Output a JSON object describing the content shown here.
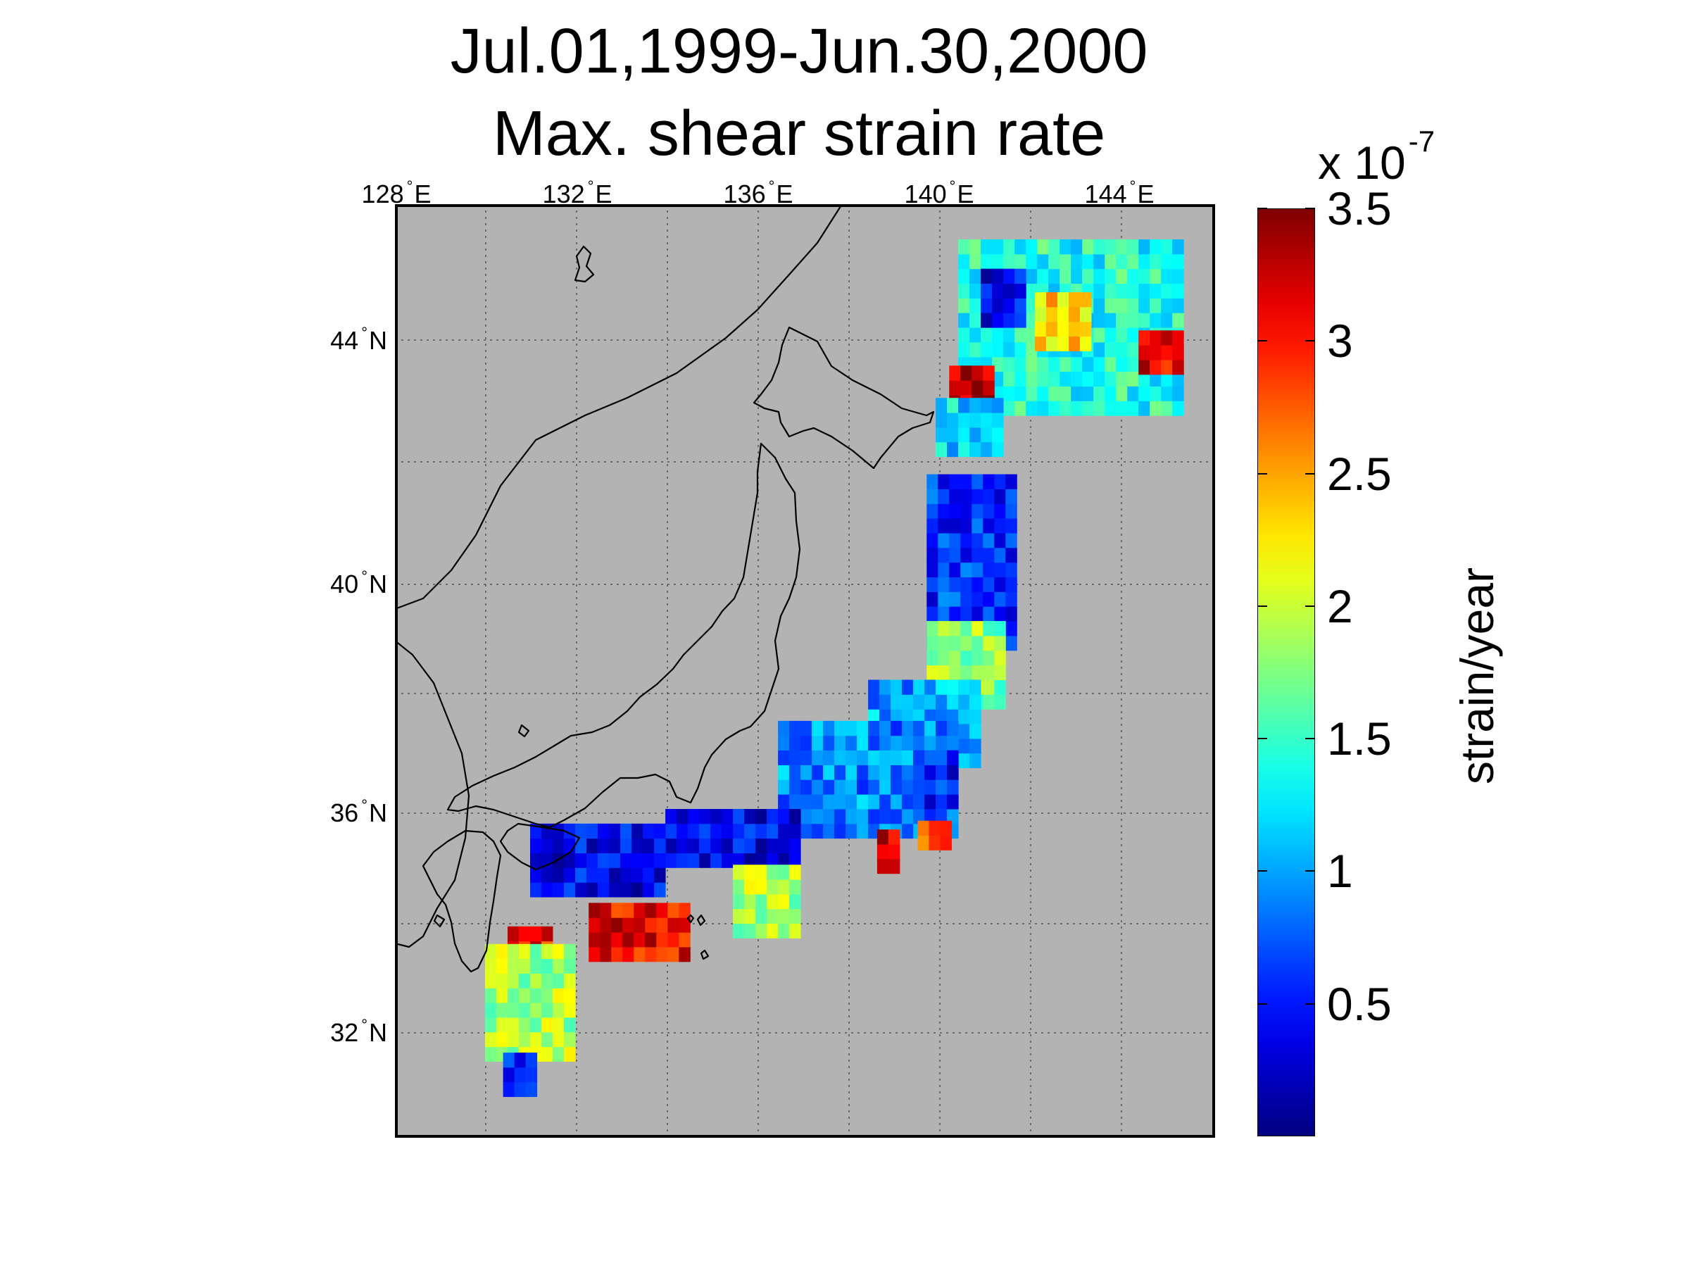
{
  "title": {
    "line1": "Jul.01,1999-Jun.30,2000",
    "line2": "Max. shear strain rate"
  },
  "map": {
    "background_color": "#b3b3b3",
    "coastline_color": "#000000",
    "gridline_style": "dotted",
    "lon_labels": [
      {
        "deg": "128",
        "hemi": "E"
      },
      {
        "deg": "132",
        "hemi": "E"
      },
      {
        "deg": "136",
        "hemi": "E"
      },
      {
        "deg": "140",
        "hemi": "E"
      },
      {
        "deg": "144",
        "hemi": "E"
      }
    ],
    "lat_labels": [
      {
        "deg": "44",
        "hemi": "N"
      },
      {
        "deg": "40",
        "hemi": "N"
      },
      {
        "deg": "36",
        "hemi": "N"
      },
      {
        "deg": "32",
        "hemi": "N"
      }
    ],
    "extent": {
      "lon_min": 128,
      "lon_max": 146.2,
      "lat_min": 30.2,
      "lat_max": 46.1
    }
  },
  "colorbar": {
    "multiplier": "x 10",
    "exponent": "-7",
    "label": "strain/year",
    "colormap": "jet",
    "range": [
      0,
      3.5
    ],
    "ticks": [
      "3.5",
      "3",
      "2.5",
      "2",
      "1.5",
      "1",
      "0.5"
    ],
    "tick_values": [
      3.5,
      3,
      2.5,
      2,
      1.5,
      1,
      0.5
    ]
  },
  "chart_data": {
    "type": "heatmap",
    "title": "Jul.01,1999-Jun.30,2000 Max. shear strain rate",
    "quantity": "Max. shear strain rate",
    "units": "x 10^-7 strain/year",
    "value_range": [
      0,
      3.5
    ],
    "regions": [
      {
        "lon": [
          140.5,
          145.5
        ],
        "lat": [
          42.5,
          45.5
        ],
        "value": 1.4
      },
      {
        "lon": [
          141.0,
          142.0
        ],
        "lat": [
          44.0,
          45.0
        ],
        "value": 0.4
      },
      {
        "lon": [
          142.2,
          143.4
        ],
        "lat": [
          43.6,
          44.4
        ],
        "value": 2.3
      },
      {
        "lon": [
          144.5,
          145.3
        ],
        "lat": [
          43.2,
          43.8
        ],
        "value": 3.1
      },
      {
        "lon": [
          140.3,
          141.3
        ],
        "lat": [
          42.6,
          43.3
        ],
        "value": 3.3
      },
      {
        "lon": [
          140.0,
          141.5
        ],
        "lat": [
          41.8,
          42.6
        ],
        "value": 1.2
      },
      {
        "lon": [
          139.8,
          141.8
        ],
        "lat": [
          38.5,
          41.5
        ],
        "value": 0.6
      },
      {
        "lon": [
          139.8,
          141.5
        ],
        "lat": [
          37.5,
          38.8
        ],
        "value": 1.8
      },
      {
        "lon": [
          138.5,
          140.8
        ],
        "lat": [
          36.5,
          37.8
        ],
        "value": 1.0
      },
      {
        "lon": [
          136.5,
          140.5
        ],
        "lat": [
          35.3,
          37.2
        ],
        "value": 0.9
      },
      {
        "lon": [
          139.5,
          140.3
        ],
        "lat": [
          35.8,
          36.6
        ],
        "value": 0.5
      },
      {
        "lon": [
          138.7,
          139.2
        ],
        "lat": [
          34.7,
          35.3
        ],
        "value": 3.2
      },
      {
        "lon": [
          139.6,
          140.3
        ],
        "lat": [
          35.1,
          35.6
        ],
        "value": 2.8
      },
      {
        "lon": [
          134.0,
          137.0
        ],
        "lat": [
          34.8,
          35.6
        ],
        "value": 0.4
      },
      {
        "lon": [
          131.0,
          134.0
        ],
        "lat": [
          34.3,
          35.5
        ],
        "value": 0.4
      },
      {
        "lon": [
          135.5,
          137.0
        ],
        "lat": [
          33.6,
          34.8
        ],
        "value": 1.9
      },
      {
        "lon": [
          132.3,
          134.5
        ],
        "lat": [
          33.2,
          34.2
        ],
        "value": 3.1
      },
      {
        "lon": [
          130.5,
          131.5
        ],
        "lat": [
          32.8,
          33.6
        ],
        "value": 3.0
      },
      {
        "lon": [
          130.0,
          132.0
        ],
        "lat": [
          31.5,
          33.5
        ],
        "value": 1.9
      },
      {
        "lon": [
          130.4,
          131.0
        ],
        "lat": [
          30.9,
          31.6
        ],
        "value": 0.5
      }
    ]
  }
}
